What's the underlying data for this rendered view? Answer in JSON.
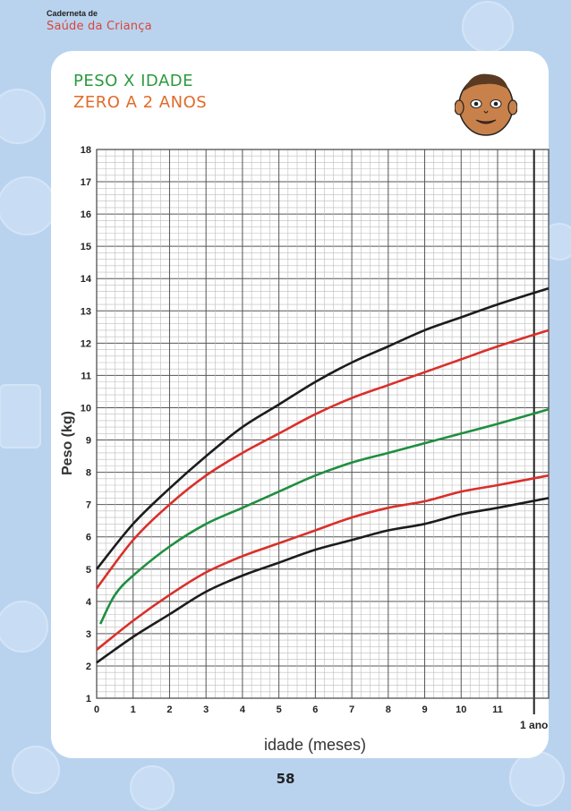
{
  "header": {
    "small_title": "Caderneta de",
    "brand": "Saúde da Criança"
  },
  "titles": {
    "line1": "PESO X IDADE",
    "line2": "ZERO A 2 ANOS"
  },
  "page_number": "58",
  "chart_data": {
    "type": "line",
    "xlabel": "idade (meses)",
    "ylabel": "Peso (kg)",
    "x_ticks": [
      "0",
      "1",
      "2",
      "3",
      "4",
      "5",
      "6",
      "7",
      "8",
      "9",
      "10",
      "11"
    ],
    "x_extra_label": "1 ano",
    "y_ticks": [
      "1",
      "2",
      "3",
      "4",
      "5",
      "6",
      "7",
      "8",
      "9",
      "10",
      "11",
      "12",
      "13",
      "14",
      "15",
      "16",
      "17",
      "18"
    ],
    "xlim": [
      0,
      12.4
    ],
    "ylim": [
      1,
      18
    ],
    "grid": true,
    "colors": {
      "black": "#1c1c1c",
      "red": "#d9302b",
      "green": "#1f8f3f"
    },
    "series": [
      {
        "color": "black",
        "x": [
          0,
          1,
          2,
          3,
          4,
          5,
          6,
          7,
          8,
          9,
          10,
          11,
          12.4
        ],
        "values": [
          2.1,
          2.9,
          3.6,
          4.3,
          4.8,
          5.2,
          5.6,
          5.9,
          6.2,
          6.4,
          6.7,
          6.9,
          7.2
        ]
      },
      {
        "color": "red",
        "x": [
          0,
          1,
          2,
          3,
          4,
          5,
          6,
          7,
          8,
          9,
          10,
          11,
          12.4
        ],
        "values": [
          2.5,
          3.4,
          4.2,
          4.9,
          5.4,
          5.8,
          6.2,
          6.6,
          6.9,
          7.1,
          7.4,
          7.6,
          7.9
        ]
      },
      {
        "color": "green",
        "x": [
          0.1,
          0.5,
          1,
          2,
          3,
          4,
          5,
          6,
          7,
          8,
          9,
          10,
          11,
          12.4
        ],
        "values": [
          3.3,
          4.2,
          4.8,
          5.7,
          6.4,
          6.9,
          7.4,
          7.9,
          8.3,
          8.6,
          8.9,
          9.2,
          9.5,
          9.95
        ]
      },
      {
        "color": "red",
        "x": [
          0,
          1,
          2,
          3,
          4,
          5,
          6,
          7,
          8,
          9,
          10,
          11,
          12.4
        ],
        "values": [
          4.4,
          5.9,
          7.0,
          7.9,
          8.6,
          9.2,
          9.8,
          10.3,
          10.7,
          11.1,
          11.5,
          11.9,
          12.4
        ]
      },
      {
        "color": "black",
        "x": [
          0,
          1,
          2,
          3,
          4,
          5,
          6,
          7,
          8,
          9,
          10,
          11,
          12.4
        ],
        "values": [
          5.0,
          6.4,
          7.5,
          8.5,
          9.4,
          10.1,
          10.8,
          11.4,
          11.9,
          12.4,
          12.8,
          13.2,
          13.7
        ]
      }
    ]
  }
}
